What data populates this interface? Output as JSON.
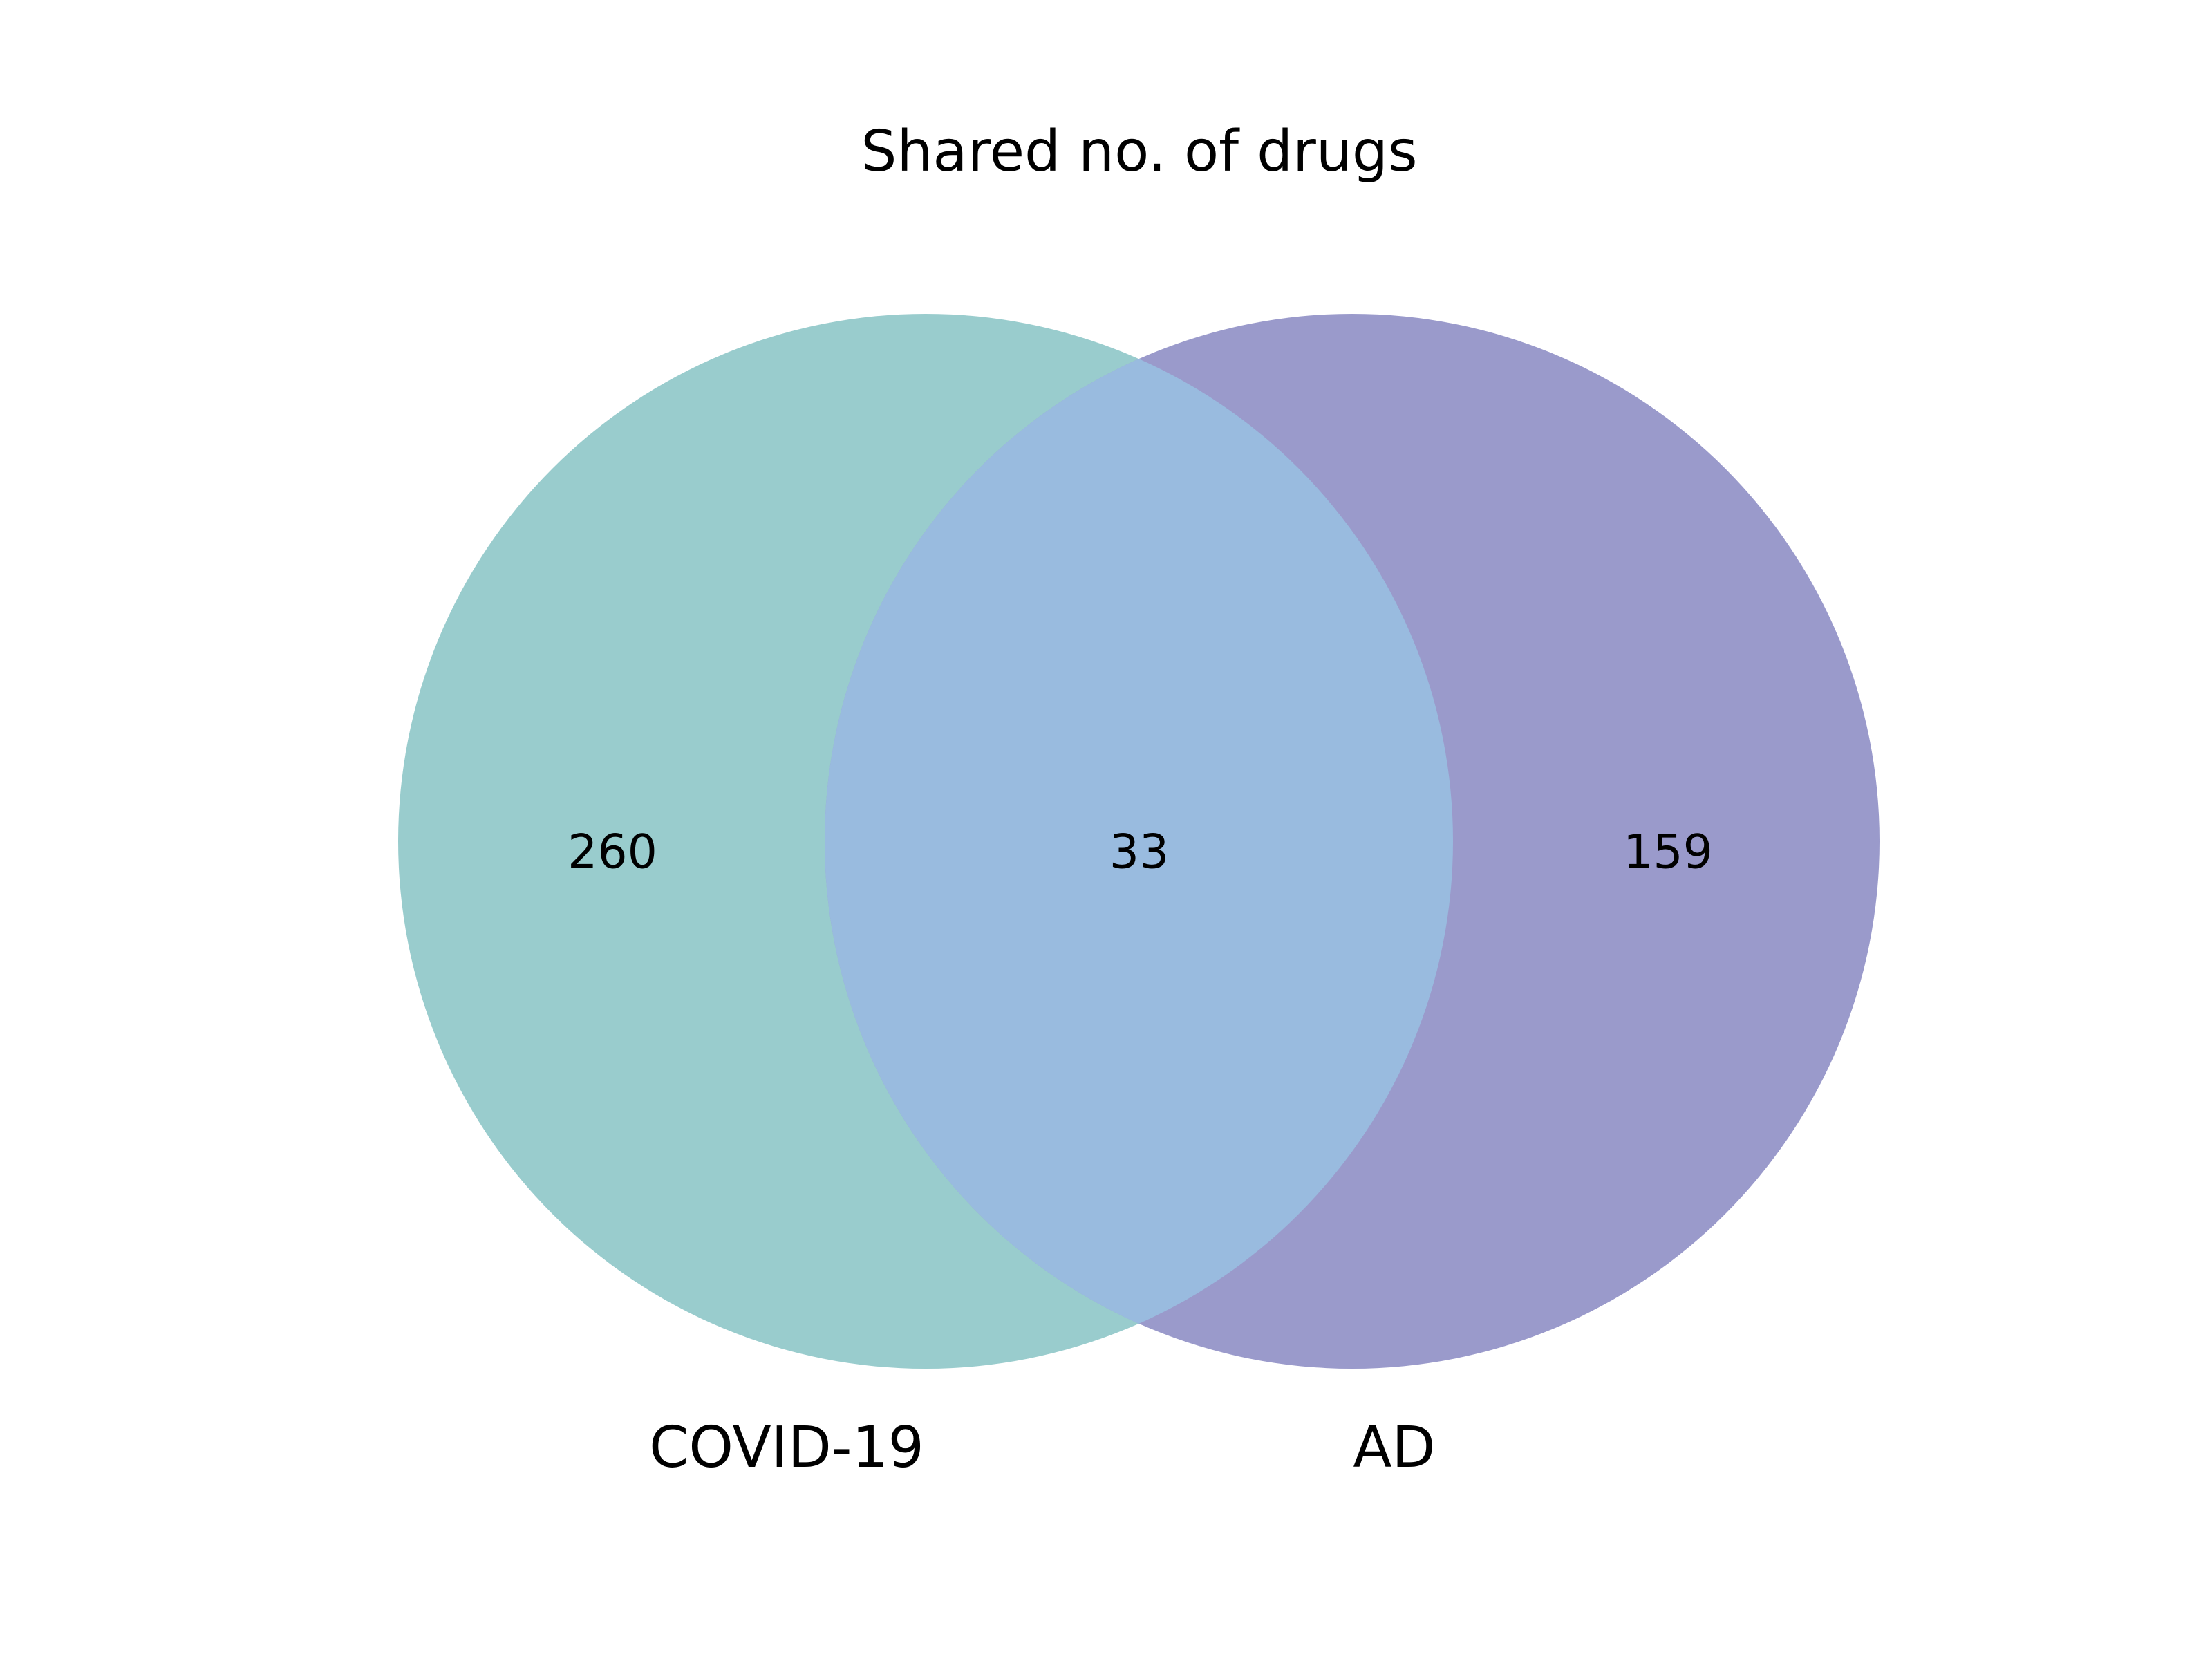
{
  "title": "Shared no. of drugs",
  "sets": [
    {
      "name": "COVID-19",
      "count": "260",
      "color": "#99cccd"
    },
    {
      "name": "AD",
      "count": "159",
      "color": "#9a9acb"
    }
  ],
  "intersection": {
    "count": "33",
    "color": "#99bbdf"
  }
}
